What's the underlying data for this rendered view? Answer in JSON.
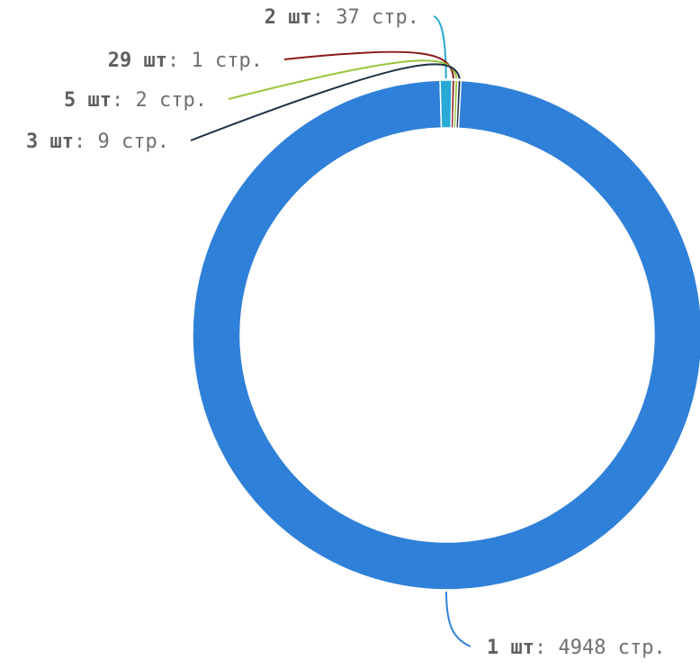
{
  "chart_data": {
    "type": "pie",
    "variant": "donut",
    "unit_bold": "шт",
    "unit_value": "стр.",
    "slices": [
      {
        "label": "1 шт",
        "value": 4948,
        "color": "#2f80d8"
      },
      {
        "label": "2 шт",
        "value": 37,
        "color": "#28a9d6"
      },
      {
        "label": "29 шт",
        "value": 1,
        "color": "#8b1a1a"
      },
      {
        "label": "5 шт",
        "value": 2,
        "color": "#9bc53d"
      },
      {
        "label": "3 шт",
        "value": 9,
        "color": "#1f3148"
      }
    ],
    "title": "",
    "legend": "none",
    "labels": "outside-with-leader-lines"
  }
}
